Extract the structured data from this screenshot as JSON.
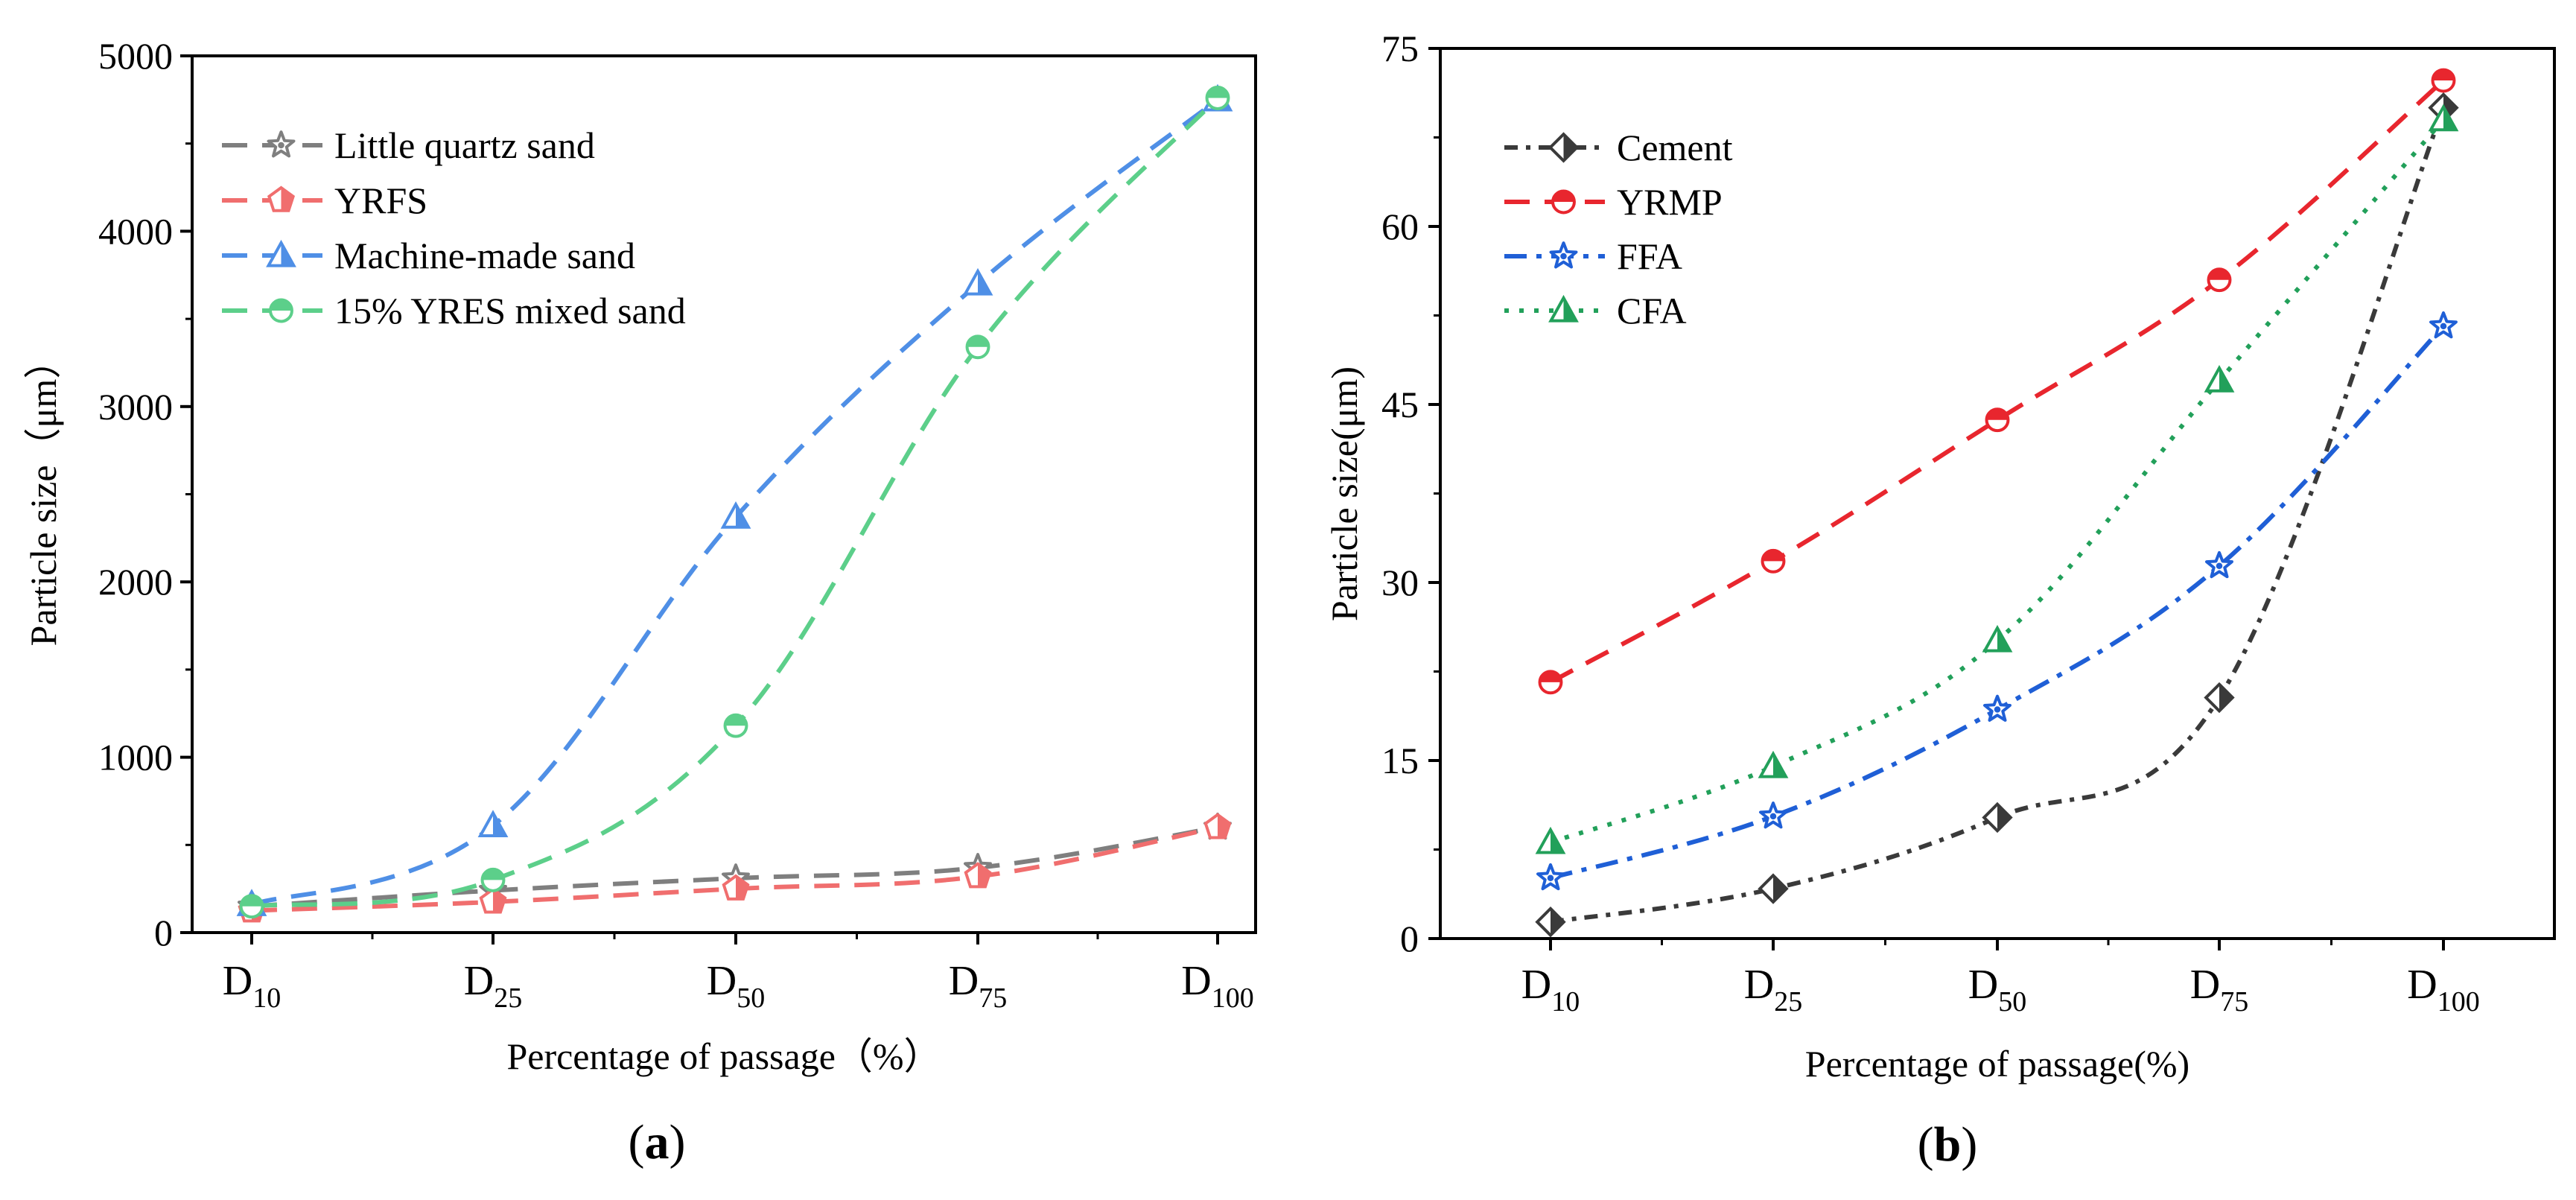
{
  "chart_data": [
    {
      "type": "line",
      "panel": "a",
      "panel_label": "a",
      "xlabel": "Percentage of passage（%）",
      "ylabel": "Particle size（μm）",
      "categories": [
        {
          "base": "D",
          "sub": "10"
        },
        {
          "base": "D",
          "sub": "25"
        },
        {
          "base": "D",
          "sub": "50"
        },
        {
          "base": "D",
          "sub": "75"
        },
        {
          "base": "D",
          "sub": "100"
        }
      ],
      "ylim": [
        0,
        5000
      ],
      "yticks": [
        "0",
        "1000",
        "2000",
        "3000",
        "4000",
        "5000"
      ],
      "legend_position": "top-left",
      "series": [
        {
          "name": "Little quartz sand",
          "color": "#7f7f7f",
          "dash": "dash",
          "marker": "star",
          "values": [
            150,
            240,
            310,
            370,
            600
          ]
        },
        {
          "name": "YRFS",
          "color": "#f06e6e",
          "dash": "dash",
          "marker": "pentagon",
          "values": [
            125,
            175,
            250,
            320,
            600
          ]
        },
        {
          "name": "Machine-made sand",
          "color": "#4f8fe6",
          "dash": "dash",
          "marker": "triangle",
          "values": [
            160,
            610,
            2370,
            3700,
            4750
          ]
        },
        {
          "name": "15% YRES mixed sand",
          "color": "#5ccf8a",
          "dash": "dash",
          "marker": "circle",
          "values": [
            150,
            300,
            1180,
            3340,
            4760
          ]
        }
      ]
    },
    {
      "type": "line",
      "panel": "b",
      "panel_label": "b",
      "xlabel": "Percentage of passage(%)",
      "ylabel": "Particle size(μm)",
      "categories": [
        {
          "base": "D",
          "sub": "10"
        },
        {
          "base": "D",
          "sub": "25"
        },
        {
          "base": "D",
          "sub": "50"
        },
        {
          "base": "D",
          "sub": "75"
        },
        {
          "base": "D",
          "sub": "100"
        }
      ],
      "ylim": [
        0,
        75
      ],
      "yticks": [
        "0",
        "15",
        "30",
        "45",
        "60",
        "75"
      ],
      "legend_position": "top-left",
      "series": [
        {
          "name": "Cement",
          "color": "#3a3a3a",
          "dash": "dashdot2",
          "marker": "diamond",
          "values": [
            1.4,
            4.2,
            10.2,
            20.3,
            70
          ]
        },
        {
          "name": "YRMP",
          "color": "#e8262e",
          "dash": "dash",
          "marker": "circle",
          "values": [
            21.6,
            31.8,
            43.7,
            55.5,
            72.3
          ]
        },
        {
          "name": "FFA",
          "color": "#1f5fd6",
          "dash": "dashdot",
          "marker": "star",
          "values": [
            5.1,
            10.3,
            19.3,
            31.4,
            51.6
          ]
        },
        {
          "name": "CFA",
          "color": "#22a05a",
          "dash": "dot",
          "marker": "triangle",
          "values": [
            8.1,
            14.5,
            25.1,
            47,
            69
          ]
        }
      ]
    }
  ]
}
